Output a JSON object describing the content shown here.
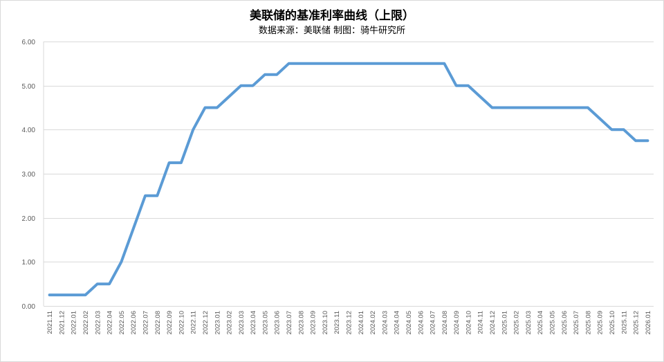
{
  "chart_data": {
    "type": "line",
    "title": "美联储的基准利率曲线（上限）",
    "subtitle": "数据来源：美联储  制图：骑牛研究所",
    "xlabel": "",
    "ylabel": "",
    "ylim": [
      0,
      6
    ],
    "yticks": [
      "0.00",
      "1.00",
      "2.00",
      "3.00",
      "4.00",
      "5.00",
      "6.00"
    ],
    "grid": true,
    "legend": "none",
    "line_color": "#5B9BD5",
    "categories": [
      "2021.11",
      "2021.12",
      "2022.01",
      "2022.02",
      "2022.03",
      "2022.04",
      "2022.05",
      "2022.06",
      "2022.07",
      "2022.08",
      "2022.09",
      "2022.10",
      "2022.11",
      "2022.12",
      "2023.01",
      "2023.02",
      "2023.03",
      "2023.04",
      "2023.05",
      "2023.06",
      "2023.07",
      "2023.08",
      "2023.09",
      "2023.10",
      "2023.11",
      "2023.12",
      "2024.01",
      "2024.02",
      "2024.03",
      "2024.04",
      "2024.05",
      "2024.06",
      "2024.07",
      "2024.08",
      "2024.09",
      "2024.10",
      "2024.11",
      "2024.12",
      "2025.01",
      "2025.02",
      "2025.03",
      "2025.04",
      "2025.05",
      "2025.06",
      "2025.07",
      "2025.08",
      "2025.09",
      "2025.10",
      "2025.11",
      "2025.12",
      "2026.01"
    ],
    "values": [
      0.25,
      0.25,
      0.25,
      0.25,
      0.5,
      0.5,
      1.0,
      1.75,
      2.5,
      2.5,
      3.25,
      3.25,
      4.0,
      4.5,
      4.5,
      4.75,
      5.0,
      5.0,
      5.25,
      5.25,
      5.5,
      5.5,
      5.5,
      5.5,
      5.5,
      5.5,
      5.5,
      5.5,
      5.5,
      5.5,
      5.5,
      5.5,
      5.5,
      5.5,
      5.0,
      5.0,
      4.75,
      4.5,
      4.5,
      4.5,
      4.5,
      4.5,
      4.5,
      4.5,
      4.5,
      4.5,
      4.25,
      4.0,
      4.0,
      3.75,
      3.75
    ]
  }
}
